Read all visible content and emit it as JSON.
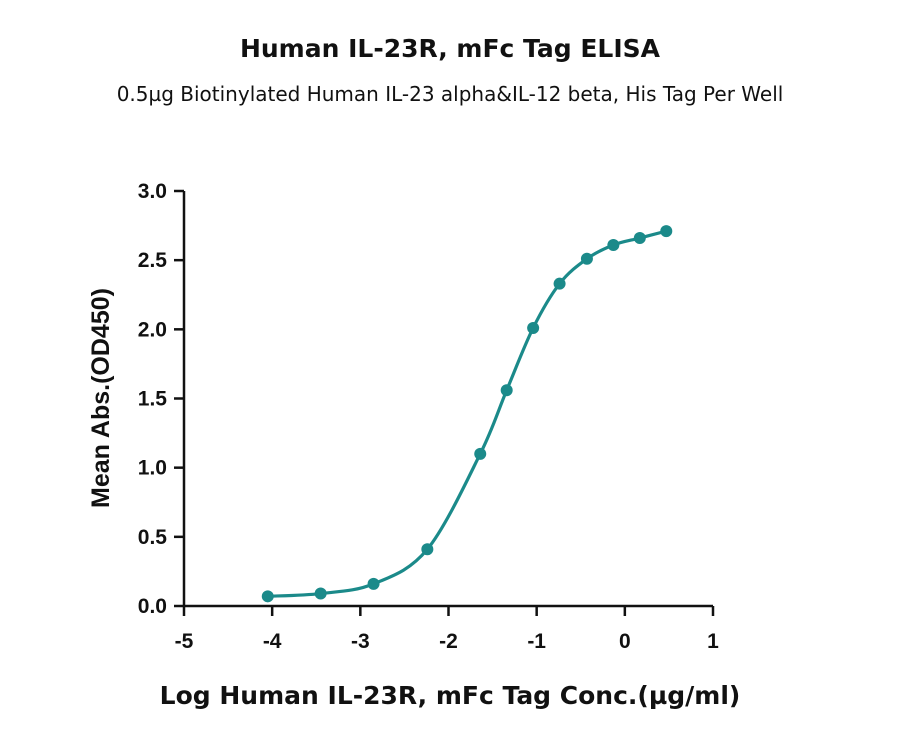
{
  "chart_data": {
    "type": "line",
    "title": "Human IL-23R, mFc Tag ELISA",
    "subtitle": "0.5µg Biotinylated Human IL-23 alpha&IL-12 beta, His Tag Per Well",
    "xlabel": "Log Human IL-23R, mFc Tag Conc.(µg/ml)",
    "ylabel": "Mean Abs.(OD450)",
    "xlim": [
      -5,
      1
    ],
    "ylim": [
      0,
      3
    ],
    "x_ticks": [
      -5,
      -4,
      -3,
      -2,
      -1,
      0,
      1
    ],
    "x_tick_labels": [
      "-5",
      "-4",
      "-3",
      "-2",
      "-1",
      "0",
      "1"
    ],
    "y_ticks": [
      0,
      0.5,
      1,
      1.5,
      2,
      2.5,
      3
    ],
    "y_tick_labels": [
      "0.0",
      "0.5",
      "1.0",
      "1.5",
      "2.0",
      "2.5",
      "3.0"
    ],
    "grid": false,
    "color": "#1b8a8a",
    "series": [
      {
        "x": [
          -4.05,
          -3.45,
          -2.85,
          -2.24,
          -1.64,
          -1.34,
          -1.04,
          -0.74,
          -0.43,
          -0.13,
          0.17,
          0.47
        ],
        "y": [
          0.07,
          0.09,
          0.16,
          0.41,
          1.1,
          1.56,
          2.01,
          2.33,
          2.51,
          2.61,
          2.66,
          2.71
        ]
      }
    ]
  }
}
